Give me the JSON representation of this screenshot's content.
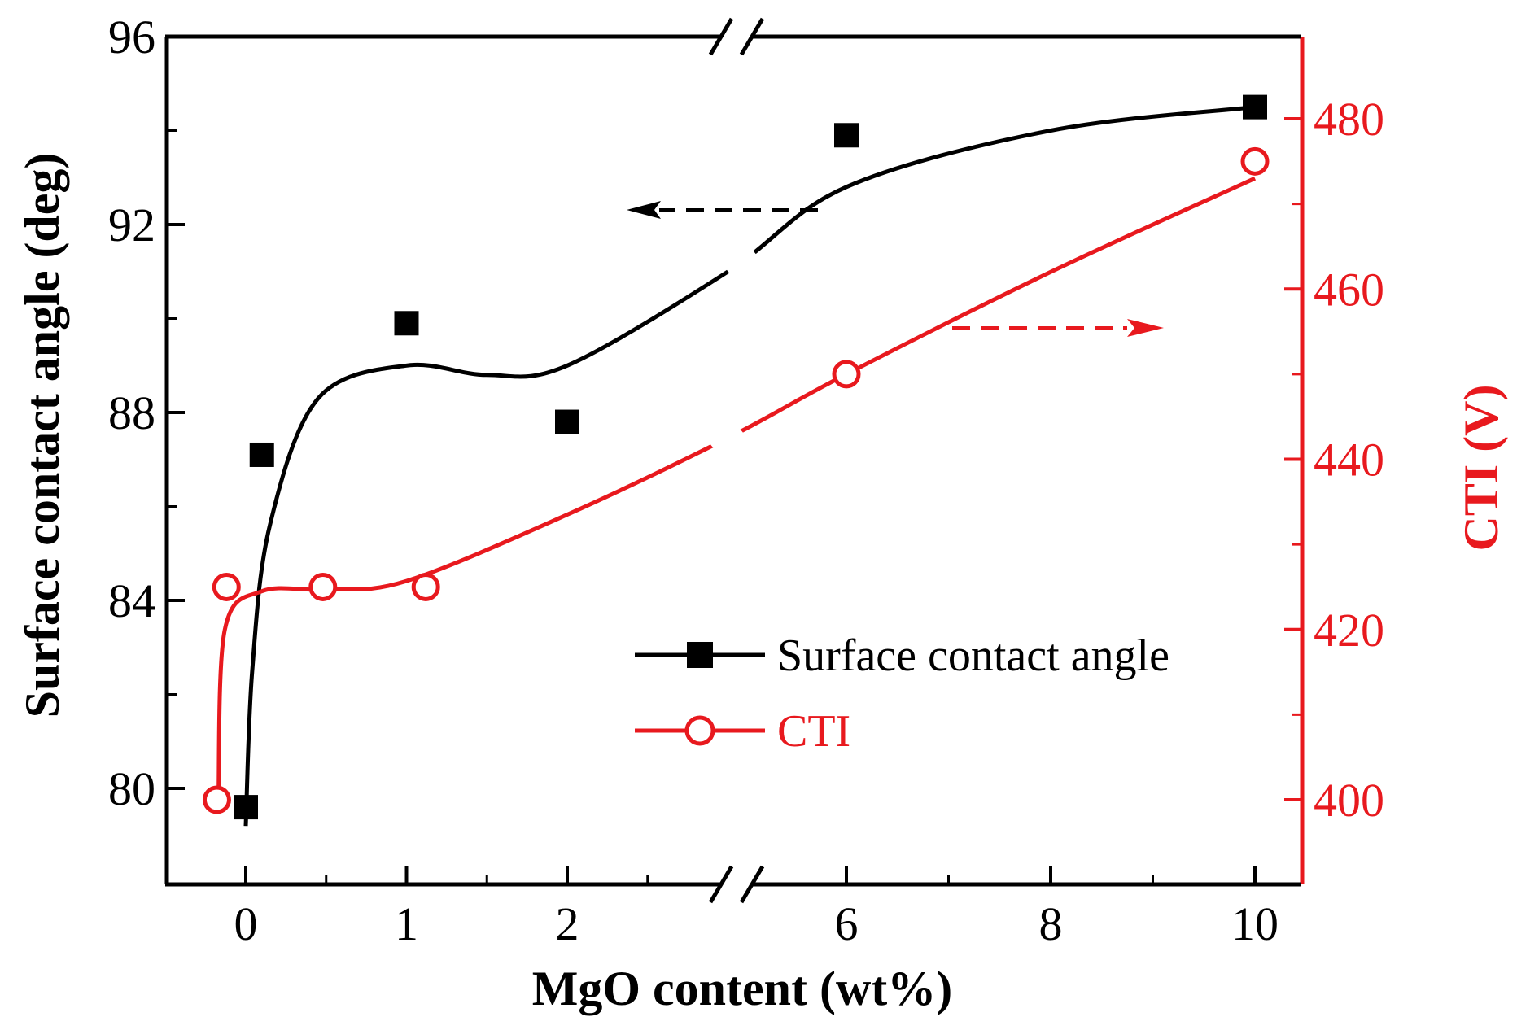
{
  "chart_data": {
    "type": "scatter",
    "title": "",
    "xlabel": "MgO content (wt%)",
    "ylabel_left": "Surface contact angle (deg)",
    "ylabel_right": "CTI (V)",
    "x_ticks": [
      "0",
      "1",
      "2",
      "6",
      "8",
      "10"
    ],
    "x_axis_break": "between 2 and 6",
    "y_left_ticks": [
      "80",
      "84",
      "88",
      "92",
      "96"
    ],
    "y_left_lim": [
      78.2,
      96
    ],
    "y_right_ticks": [
      "400",
      "420",
      "440",
      "460",
      "480"
    ],
    "y_right_lim": [
      389,
      493
    ],
    "legend_position": "lower-right",
    "series": [
      {
        "name": "Surface contact angle",
        "axis": "left",
        "marker": "filled-square",
        "color": "#000000",
        "points": [
          {
            "x": 0,
            "y": 79.6
          },
          {
            "x": 0.1,
            "y": 87.1
          },
          {
            "x": 1,
            "y": 89.9
          },
          {
            "x": 2,
            "y": 87.8
          },
          {
            "x": 6,
            "y": 93.9
          },
          {
            "x": 10,
            "y": 94.5
          }
        ]
      },
      {
        "name": "CTI",
        "axis": "right",
        "marker": "open-circle",
        "color": "#e8191e",
        "points": [
          {
            "x": -0.18,
            "y": 400
          },
          {
            "x": -0.12,
            "y": 425
          },
          {
            "x": 0.48,
            "y": 425
          },
          {
            "x": 1.12,
            "y": 425
          },
          {
            "x": 6,
            "y": 450
          },
          {
            "x": 10,
            "y": 475
          }
        ]
      }
    ],
    "arrows": [
      {
        "series": "Surface contact angle",
        "direction": "left",
        "style": "dashed"
      },
      {
        "series": "CTI",
        "direction": "right",
        "style": "dashed"
      }
    ]
  }
}
